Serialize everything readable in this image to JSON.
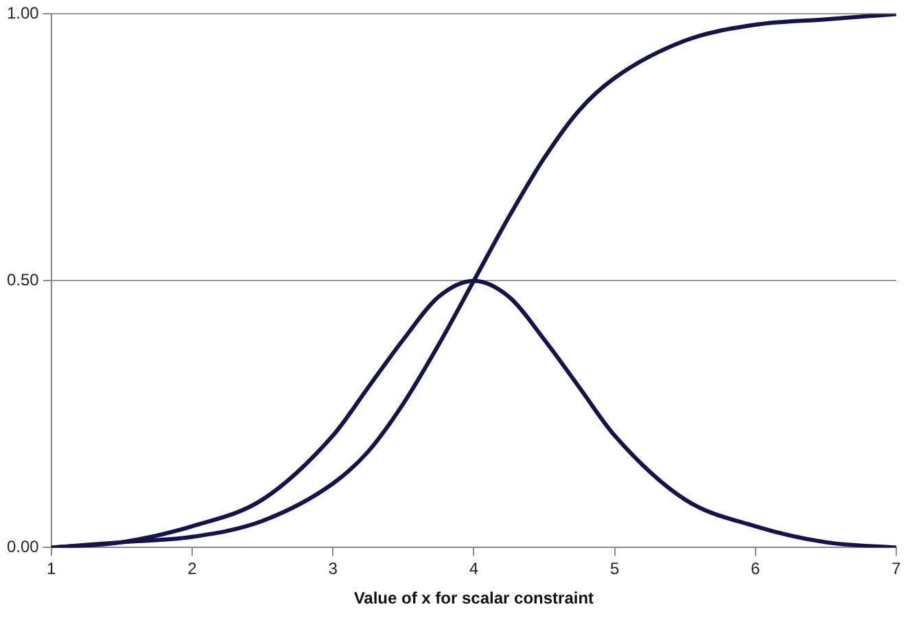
{
  "chart_data": {
    "type": "line",
    "xlabel": "Value of x for scalar constraint",
    "x": [
      1,
      1.5,
      2,
      2.5,
      3,
      3.25,
      3.5,
      3.75,
      4,
      4.25,
      4.5,
      4.75,
      5,
      5.5,
      6,
      6.5,
      7
    ],
    "series": [
      {
        "color": "#14144a",
        "values": [
          0.0,
          0.01,
          0.02,
          0.05,
          0.12,
          0.18,
          0.27,
          0.38,
          0.5,
          0.62,
          0.73,
          0.82,
          0.88,
          0.95,
          0.98,
          0.99,
          1.0
        ]
      },
      {
        "color": "#14144a",
        "values": [
          0.0,
          0.01,
          0.04,
          0.09,
          0.21,
          0.3,
          0.39,
          0.47,
          0.5,
          0.47,
          0.39,
          0.3,
          0.21,
          0.09,
          0.04,
          0.01,
          0.0
        ]
      }
    ],
    "xlim": [
      1,
      7
    ],
    "xticks": [
      1,
      2,
      3,
      4,
      5,
      6,
      7
    ],
    "ylim": [
      0,
      1
    ],
    "yticks": [
      {
        "value": 0,
        "label": "0.00"
      },
      {
        "value": 0.5,
        "label": "0.50"
      },
      {
        "value": 1,
        "label": "1.00"
      }
    ],
    "grid": "y",
    "legend": false,
    "marker": "none",
    "line_style": "solid"
  }
}
